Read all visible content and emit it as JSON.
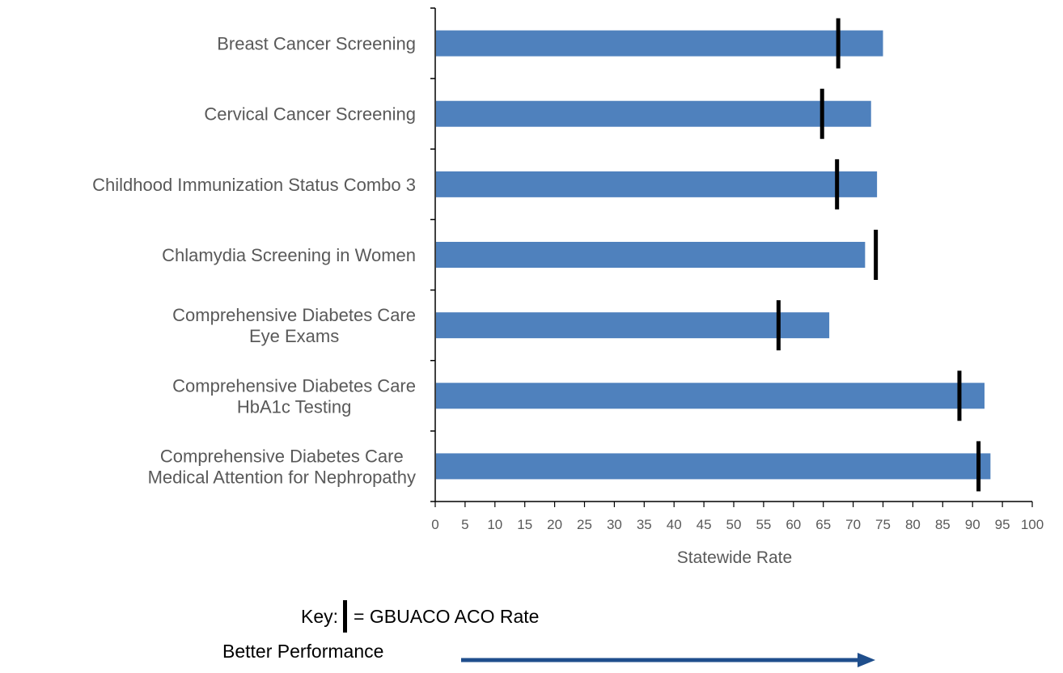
{
  "chart_data": {
    "type": "bar",
    "orientation": "horizontal",
    "categories": [
      [
        "Breast Cancer Screening"
      ],
      [
        "Cervical Cancer Screening"
      ],
      [
        "Childhood Immunization Status Combo 3"
      ],
      [
        "Chlamydia Screening in Women"
      ],
      [
        "Comprehensive Diabetes Care",
        "Eye Exams"
      ],
      [
        "Comprehensive Diabetes Care",
        "HbA1c Testing"
      ],
      [
        "Comprehensive Diabetes Care",
        "Medical Attention for Nephropathy"
      ]
    ],
    "series": [
      {
        "values": [
          75,
          73,
          74,
          72,
          66,
          92,
          93
        ],
        "color": "#4F81BD"
      },
      {
        "name": "GBUACO ACO Rate",
        "values": [
          67.5,
          64.8,
          67.3,
          73.8,
          57.5,
          87.8,
          91
        ]
      }
    ],
    "xlabel": "Statewide Rate",
    "xlim": [
      0,
      100
    ],
    "xticks": [
      0,
      5,
      10,
      15,
      20,
      25,
      30,
      35,
      40,
      45,
      50,
      55,
      60,
      65,
      70,
      75,
      80,
      85,
      90,
      95,
      100
    ]
  },
  "key": {
    "prefix": "Key:",
    "label": "= GBUACO ACO Rate"
  },
  "direction_note": "Better Performance",
  "colors": {
    "bar": "#4F81BD",
    "arrow": "#1F4E8C",
    "marker": "#000000"
  }
}
